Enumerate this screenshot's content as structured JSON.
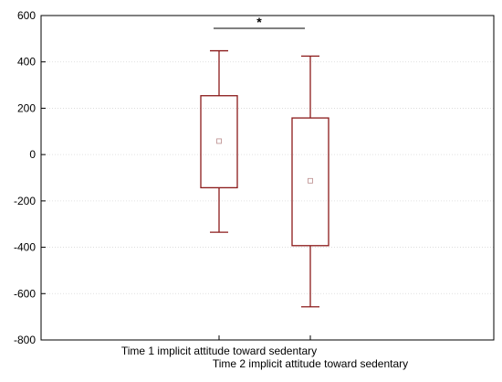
{
  "chart_data": {
    "type": "boxplot",
    "title": "",
    "xlabel": "",
    "ylabel": "",
    "ylim": [
      -800,
      600
    ],
    "yticks": [
      -800,
      -600,
      -400,
      -200,
      0,
      200,
      400,
      600
    ],
    "grid": true,
    "categories": [
      "Time 1 implicit attitude toward sedentary",
      "Time 2 implicit attitude toward sedentary"
    ],
    "boxes": [
      {
        "category": "Time 1 implicit attitude toward sedentary",
        "whisker_low": -335,
        "q1": -143,
        "center": 58,
        "q3": 254,
        "whisker_high": 448
      },
      {
        "category": "Time 2 implicit attitude toward sedentary",
        "whisker_low": -657,
        "q1": -393,
        "center": -113,
        "q3": 158,
        "whisker_high": 425
      }
    ],
    "annotation": {
      "label": "*",
      "from": 0,
      "to": 1
    },
    "colors": {
      "box": "#8b1a1a",
      "grid": "#d8d8d8",
      "axis": "#000000"
    }
  }
}
